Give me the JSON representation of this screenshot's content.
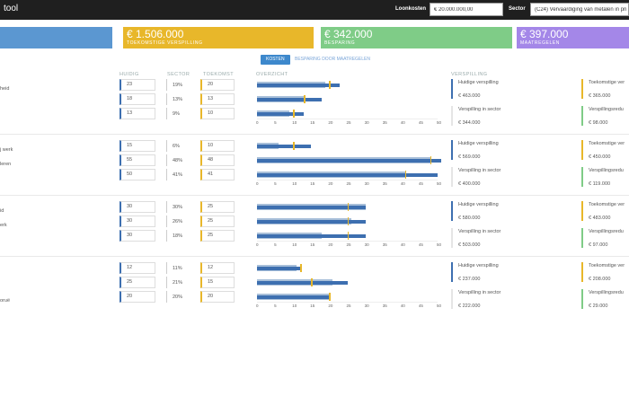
{
  "app": {
    "title": "tool"
  },
  "header": {
    "loonkosten_label": "Loonkosten",
    "loonkosten_value": "€ 20.000.000,00",
    "sector_label": "Sector",
    "sector_value": "(C24) Vervaardiging van metalen in pri"
  },
  "cards": [
    {
      "big": "",
      "small": "",
      "color": "#5b97d1"
    },
    {
      "big": "€ 1.506.000",
      "small": "TOEKOMSTIGE VERSPILLING",
      "color": "#e8b72a"
    },
    {
      "big": "€ 342.000",
      "small": "BESPARING",
      "color": "#7fcc87"
    },
    {
      "big": "€ 397.000",
      "small": "MAATREGELEN",
      "color": "#a487e8"
    }
  ],
  "tabs": {
    "kosten": "KOSTEN",
    "besparing": "BESPARING DOOR MAATREGELEN"
  },
  "columns": {
    "huidig": "HUIDIG",
    "sector": "SECTOR",
    "toekomst": "TOEKOMST",
    "overzicht": "OVERZICHT",
    "verspilling": "VERSPILLING"
  },
  "axis_ticks": [
    "0",
    "5",
    "10",
    "15",
    "20",
    "25",
    "30",
    "35",
    "40",
    "45",
    "50"
  ],
  "groups": [
    {
      "labels": [
        "heid",
        "",
        ""
      ],
      "rows": [
        {
          "huidig": "23",
          "sector": "19%",
          "toekomst": "20"
        },
        {
          "huidig": "18",
          "sector": "13%",
          "toekomst": "13"
        },
        {
          "huidig": "13",
          "sector": "9%",
          "toekomst": "10"
        }
      ],
      "waste": {
        "huidige_label": "Huidige verspilling",
        "huidige_value": "€ 463.000",
        "sector_label": "Verspilling in sector",
        "sector_value": "€ 344.000",
        "toekomst_label": "Toekomstige ver",
        "toekomst_value": "€ 365.000",
        "reductie_label": "Verspillingsredu",
        "reductie_value": "€ 98.000"
      }
    },
    {
      "labels": [
        "j werk",
        "leren",
        ""
      ],
      "rows": [
        {
          "huidig": "15",
          "sector": "6%",
          "toekomst": "10"
        },
        {
          "huidig": "55",
          "sector": "48%",
          "toekomst": "48"
        },
        {
          "huidig": "50",
          "sector": "41%",
          "toekomst": "41"
        }
      ],
      "waste": {
        "huidige_label": "Huidige verspilling",
        "huidige_value": "€ 569.000",
        "sector_label": "Verspilling in sector",
        "sector_value": "€ 400.000",
        "toekomst_label": "Toekomstige ver",
        "toekomst_value": "€ 450.000",
        "reductie_label": "Verspillingsredu",
        "reductie_value": "€ 119.000"
      }
    },
    {
      "labels": [
        "id",
        "erk",
        ""
      ],
      "rows": [
        {
          "huidig": "30",
          "sector": "30%",
          "toekomst": "25"
        },
        {
          "huidig": "30",
          "sector": "26%",
          "toekomst": "25"
        },
        {
          "huidig": "30",
          "sector": "18%",
          "toekomst": "25"
        }
      ],
      "waste": {
        "huidige_label": "Huidige verspilling",
        "huidige_value": "€ 580.000",
        "sector_label": "Verspilling in sector",
        "sector_value": "€ 503.000",
        "toekomst_label": "Toekomstige ver",
        "toekomst_value": "€ 483.000",
        "reductie_label": "Verspillingsredu",
        "reductie_value": "€ 97.000"
      }
    },
    {
      "labels": [
        "",
        "",
        "oruë"
      ],
      "rows": [
        {
          "huidig": "12",
          "sector": "11%",
          "toekomst": "12"
        },
        {
          "huidig": "25",
          "sector": "21%",
          "toekomst": "15"
        },
        {
          "huidig": "20",
          "sector": "20%",
          "toekomst": "20"
        }
      ],
      "waste": {
        "huidige_label": "Huidige verspilling",
        "huidige_value": "€ 237.000",
        "sector_label": "Verspilling in sector",
        "sector_value": "€ 222.000",
        "toekomst_label": "Toekomstige ver",
        "toekomst_value": "€ 208.000",
        "reductie_label": "Verspillingsredu",
        "reductie_value": "€ 29.000"
      }
    }
  ],
  "chart_data": {
    "type": "bar",
    "xlim": [
      0,
      50
    ],
    "series": [
      {
        "values": [
          23,
          18,
          13,
          15,
          55,
          50,
          30,
          30,
          30,
          12,
          25,
          20
        ]
      },
      {
        "values": [
          20,
          13,
          10,
          10,
          48,
          41,
          25,
          25,
          25,
          12,
          15,
          20
        ]
      }
    ],
    "sector_pct": [
      19,
      13,
      9,
      6,
      48,
      41,
      30,
      26,
      18,
      11,
      21,
      20
    ]
  }
}
